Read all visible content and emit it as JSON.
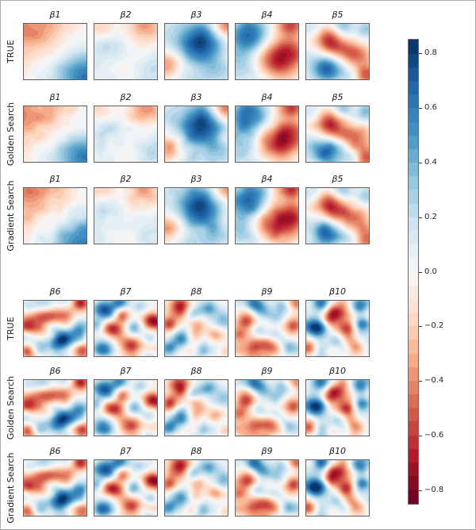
{
  "chart_data": {
    "type": "heatmap",
    "layout": "two blocks of 3 rows x 5 columns of filled-contour maps with shared diverging colorbar",
    "colormap": {
      "name": "RdBu",
      "anchors": [
        "#67001f",
        "#b2182b",
        "#d6604d",
        "#f4a582",
        "#fddbc7",
        "#f7f7f7",
        "#d1e5f0",
        "#92c5de",
        "#4393c3",
        "#2166ac",
        "#053061"
      ]
    },
    "vmin": -0.85,
    "vmax": 0.85,
    "level_step": 0.05,
    "colorbar": {
      "tick_labels": [
        "0.8",
        "0.6",
        "0.4",
        "0.2",
        "0.0",
        "−0.2",
        "−0.4",
        "−0.6",
        "−0.8"
      ],
      "tick_values": [
        0.8,
        0.6,
        0.4,
        0.2,
        0.0,
        -0.2,
        -0.4,
        -0.6,
        -0.8
      ],
      "position": "right"
    },
    "rows": [
      {
        "label": "TRUE",
        "jitter": {
          "seed": 0,
          "amp": 0.0,
          "scale": 6
        }
      },
      {
        "label": "Golden Search",
        "jitter": {
          "seed": 7,
          "amp": 0.07,
          "scale": 6
        }
      },
      {
        "label": "Gradient Search",
        "jitter": {
          "seed": 13,
          "amp": 0.07,
          "scale": 6
        }
      }
    ],
    "blocks": [
      {
        "cols": [
          "β1",
          "β2",
          "β3",
          "β4",
          "β5"
        ],
        "fields": [
          "b1",
          "b2",
          "b3",
          "b4",
          "b5"
        ]
      },
      {
        "cols": [
          "β6",
          "β7",
          "β8",
          "β9",
          "β10"
        ],
        "fields": [
          "b6",
          "b7",
          "b8",
          "b9",
          "b10"
        ]
      }
    ],
    "fields": {
      "b1": {
        "noise": {
          "seed": 11,
          "amp": 0.04,
          "scale": 5
        },
        "blobs": [
          [
            0.02,
            0.02,
            0.45,
            -0.34
          ],
          [
            0.35,
            0.2,
            0.4,
            -0.12
          ],
          [
            1.0,
            1.0,
            0.3,
            0.48
          ],
          [
            0.72,
            0.72,
            0.4,
            0.18
          ]
        ]
      },
      "b2": {
        "noise": {
          "seed": 12,
          "amp": 0.05,
          "scale": 5
        },
        "blobs": [
          [
            0.1,
            0.05,
            0.16,
            -0.22
          ],
          [
            0.8,
            0.05,
            0.22,
            -0.38
          ],
          [
            0.1,
            0.45,
            0.25,
            0.18
          ],
          [
            0.5,
            0.8,
            0.22,
            -0.18
          ],
          [
            0.9,
            0.85,
            0.25,
            0.2
          ],
          [
            0.55,
            0.45,
            0.3,
            0.06
          ],
          [
            0.3,
            0.95,
            0.2,
            0.12
          ]
        ]
      },
      "b3": {
        "noise": {
          "seed": 13,
          "amp": 0.05,
          "scale": 5
        },
        "blobs": [
          [
            0.55,
            0.33,
            0.27,
            0.78
          ],
          [
            0.97,
            0.03,
            0.15,
            -0.5
          ],
          [
            0.07,
            0.75,
            0.16,
            -0.42
          ],
          [
            0.8,
            0.9,
            0.22,
            0.25
          ],
          [
            0.25,
            0.95,
            0.2,
            0.12
          ],
          [
            0.03,
            0.2,
            0.2,
            0.1
          ]
        ]
      },
      "b4": {
        "noise": {
          "seed": 14,
          "amp": 0.05,
          "scale": 5
        },
        "blobs": [
          [
            0.22,
            0.2,
            0.23,
            0.68
          ],
          [
            0.68,
            0.63,
            0.25,
            -0.78
          ],
          [
            0.87,
            0.02,
            0.16,
            -0.55
          ],
          [
            0.03,
            0.72,
            0.28,
            0.28
          ],
          [
            0.45,
            0.97,
            0.22,
            0.12
          ],
          [
            0.97,
            0.45,
            0.15,
            -0.2
          ]
        ]
      },
      "b5": {
        "noise": {
          "seed": 15,
          "amp": 0.05,
          "scale": 5
        },
        "blobs": [
          [
            0.33,
            0.27,
            0.18,
            -0.6
          ],
          [
            0.52,
            0.5,
            0.16,
            -0.3
          ],
          [
            0.8,
            0.55,
            0.16,
            -0.5
          ],
          [
            0.95,
            0.92,
            0.14,
            -0.55
          ],
          [
            0.33,
            0.8,
            0.18,
            0.75
          ],
          [
            0.58,
            0.03,
            0.13,
            0.4
          ],
          [
            0.08,
            0.1,
            0.14,
            0.25
          ],
          [
            0.95,
            0.12,
            0.12,
            0.32
          ],
          [
            0.05,
            0.5,
            0.15,
            0.1
          ],
          [
            0.7,
            0.95,
            0.12,
            0.2
          ]
        ]
      },
      "b6": {
        "noise": {
          "seed": 61,
          "amp": 0.28,
          "scale": 4.5
        },
        "blobs": [
          [
            0.3,
            0.06,
            0.12,
            0.3
          ],
          [
            0.92,
            0.06,
            0.11,
            -0.5
          ],
          [
            0.15,
            0.45,
            0.14,
            -0.55
          ],
          [
            0.42,
            0.32,
            0.13,
            -0.5
          ],
          [
            0.68,
            0.38,
            0.11,
            -0.3
          ],
          [
            0.55,
            0.75,
            0.16,
            0.85
          ],
          [
            0.88,
            0.55,
            0.11,
            0.3
          ],
          [
            0.07,
            0.93,
            0.1,
            -0.55
          ],
          [
            0.93,
            0.9,
            0.1,
            -0.45
          ],
          [
            0.07,
            0.12,
            0.1,
            0.25
          ],
          [
            0.3,
            0.6,
            0.1,
            -0.2
          ]
        ]
      },
      "b7": {
        "noise": {
          "seed": 72,
          "amp": 0.28,
          "scale": 4.5
        },
        "blobs": [
          [
            0.1,
            0.14,
            0.13,
            0.65
          ],
          [
            0.38,
            0.06,
            0.1,
            0.4
          ],
          [
            0.28,
            0.55,
            0.12,
            -0.65
          ],
          [
            0.93,
            0.35,
            0.12,
            -0.8
          ],
          [
            0.6,
            0.82,
            0.13,
            -0.7
          ],
          [
            0.08,
            0.88,
            0.11,
            0.6
          ],
          [
            0.62,
            0.5,
            0.1,
            0.35
          ],
          [
            0.45,
            0.28,
            0.08,
            -0.25
          ],
          [
            0.85,
            0.95,
            0.09,
            0.3
          ],
          [
            0.72,
            0.1,
            0.09,
            0.3
          ],
          [
            0.05,
            0.45,
            0.09,
            0.2
          ]
        ]
      },
      "b8": {
        "noise": {
          "seed": 83,
          "amp": 0.28,
          "scale": 4.5
        },
        "blobs": [
          [
            0.25,
            0.1,
            0.13,
            -0.6
          ],
          [
            0.7,
            0.12,
            0.12,
            0.5
          ],
          [
            0.95,
            0.3,
            0.1,
            0.3
          ],
          [
            0.1,
            0.42,
            0.1,
            -0.5
          ],
          [
            0.5,
            0.45,
            0.12,
            -0.55
          ],
          [
            0.3,
            0.68,
            0.12,
            0.5
          ],
          [
            0.08,
            0.85,
            0.1,
            0.45
          ],
          [
            0.8,
            0.6,
            0.11,
            -0.4
          ],
          [
            0.6,
            0.9,
            0.1,
            0.4
          ],
          [
            0.95,
            0.92,
            0.09,
            -0.35
          ],
          [
            0.45,
            0.25,
            0.08,
            0.2
          ]
        ]
      },
      "b9": {
        "noise": {
          "seed": 94,
          "amp": 0.28,
          "scale": 4.5
        },
        "blobs": [
          [
            0.35,
            0.07,
            0.12,
            0.6
          ],
          [
            0.75,
            0.1,
            0.1,
            0.35
          ],
          [
            0.18,
            0.3,
            0.13,
            -0.6
          ],
          [
            0.38,
            0.5,
            0.11,
            0.55
          ],
          [
            0.45,
            0.78,
            0.16,
            -0.75
          ],
          [
            0.05,
            0.62,
            0.1,
            -0.4
          ],
          [
            0.92,
            0.45,
            0.1,
            -0.6
          ],
          [
            0.65,
            0.33,
            0.1,
            0.3
          ],
          [
            0.85,
            0.82,
            0.11,
            0.35
          ],
          [
            0.97,
            0.05,
            0.08,
            -0.3
          ],
          [
            0.6,
            0.6,
            0.09,
            0.25
          ]
        ]
      },
      "b10": {
        "noise": {
          "seed": 105,
          "amp": 0.28,
          "scale": 4.5
        },
        "blobs": [
          [
            0.25,
            0.05,
            0.1,
            0.45
          ],
          [
            0.45,
            0.22,
            0.12,
            -0.6
          ],
          [
            0.85,
            0.12,
            0.11,
            0.5
          ],
          [
            0.15,
            0.5,
            0.13,
            0.7
          ],
          [
            0.05,
            0.85,
            0.1,
            -0.45
          ],
          [
            0.65,
            0.5,
            0.1,
            -0.45
          ],
          [
            0.9,
            0.42,
            0.09,
            0.35
          ],
          [
            0.78,
            0.85,
            0.11,
            -0.5
          ],
          [
            0.48,
            0.75,
            0.1,
            0.35
          ],
          [
            0.32,
            0.35,
            0.08,
            -0.3
          ],
          [
            0.6,
            0.03,
            0.08,
            -0.25
          ]
        ]
      }
    }
  }
}
